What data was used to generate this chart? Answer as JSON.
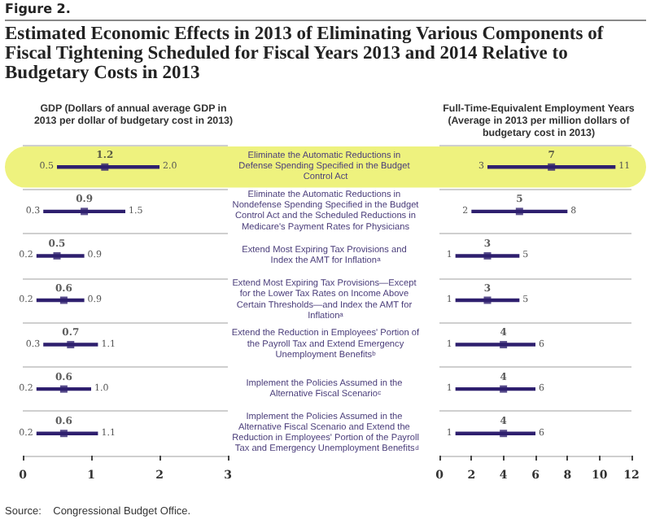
{
  "chart_data": [
    {
      "type": "scatter",
      "orientation": "horizontal",
      "title": "Estimated Economic Effects in 2013 of Eliminating Various Components of Fiscal Tightening Scheduled for Fiscal Years 2013 and 2014 Relative to Budgetary Costs in 2013",
      "subtitle": "GDP (Dollars of annual average GDP in\n2013 per dollar of budgetary cost in 2013)",
      "annotations": [
        "Figure 2.",
        "Source:    Congressional Budget Office.",
        {
          "text": "0.5",
          "x": 0.5,
          "y": "Eliminate the Automatic Reductions in Defense Spending Specified in the Budget Control Act"
        },
        {
          "text": "2.0",
          "x": 2.0,
          "y": "Eliminate the Automatic Reductions in Defense Spending Specified in the Budget Control Act"
        },
        {
          "text": "0.3",
          "x": 0.3,
          "y": "Eliminate the Automatic Reductions in Nondefense Spending Specified in the Budget Control Act and the Scheduled Reductions in Medicare's Payment Rates for Physicians"
        },
        {
          "text": "1.5",
          "x": 1.5,
          "y": "Eliminate the Automatic Reductions in Nondefense Spending Specified in the Budget Control Act and the Scheduled Reductions in Medicare's Payment Rates for Physicians"
        },
        {
          "text": "0.2",
          "x": 0.2,
          "y": "Extend Most Expiring Tax Provisions and Index the AMT for Inflation$^{a}$"
        },
        {
          "text": "0.9",
          "x": 0.9,
          "y": "Extend Most Expiring Tax Provisions and Index the AMT for Inflation$^{a}$"
        },
        {
          "text": "0.2",
          "x": 0.2,
          "y": "Extend Most Expiring Tax Provisions—Except for the Lower Tax Rates on Income Above Certain Thresholds—and Index the AMT for Inflation$^{a}$"
        },
        {
          "text": "0.9",
          "x": 0.9,
          "y": "Extend Most Expiring Tax Provisions—Except for the Lower Tax Rates on Income Above Certain Thresholds—and Index the AMT for Inflation$^{a}$"
        },
        {
          "text": "0.3",
          "x": 0.3,
          "y": "Extend the Reduction in Employees' Portion of the Payroll Tax and Extend Emergency Unemployment Benefits$^{b}$"
        },
        {
          "text": "1.1",
          "x": 1.1,
          "y": "Extend the Reduction in Employees' Portion of the Payroll Tax and Extend Emergency Unemployment Benefits$^{b}$"
        },
        {
          "text": "0.2",
          "x": 0.2,
          "y": "Implement the Policies Assumed in the Alternative Fiscal Scenario$^{c}$"
        },
        {
          "text": "1.0",
          "x": 1.0,
          "y": "Implement the Policies Assumed in the Alternative Fiscal Scenario$^{c}$"
        },
        {
          "text": "0.2",
          "x": 0.2,
          "y": "Implement the Policies Assumed in the Alternative Fiscal Scenario and Extend the Reduction in Employees' Portion of the Payroll Tax and Emergency Unemployment Benefits$^{d}$"
        },
        {
          "text": "1.1",
          "x": 1.1,
          "y": "Implement the Policies Assumed in the Alternative Fiscal Scenario and Extend the Reduction in Employees' Portion of the Payroll Tax and Emergency Unemployment Benefits$^{d}$"
        }
      ],
      "categories": [
        "Eliminate the Automatic Reductions in Defense Spending Specified in the Budget Control Act",
        "Eliminate the Automatic Reductions in Nondefense Spending Specified in the Budget Control Act and the Scheduled Reductions in Medicare's Payment Rates for Physicians",
        "Extend Most Expiring Tax Provisions and Index the AMT for Inflation$^{a}$",
        "Extend Most Expiring Tax Provisions—Except for the Lower Tax Rates on Income Above Certain Thresholds—and Index the AMT for Inflation$^{a}$",
        "Extend the Reduction in Employees' Portion of the Payroll Tax and Extend Emergency Unemployment Benefits$^{b}$",
        "Implement the Policies Assumed in the Alternative Fiscal Scenario$^{c}$",
        "Implement the Policies Assumed in the Alternative Fiscal Scenario and Extend the Reduction in Employees' Portion of the Payroll Tax and Emergency Unemployment Benefits$^{d}$"
      ],
      "series": [
        {
          "color": "#2e1f6e",
          "values": [
            1.2,
            0.9,
            0.5,
            0.6,
            0.7,
            0.6,
            0.6
          ],
          "errors": [
            [
              0.5,
              2.0
            ],
            [
              0.3,
              1.5
            ],
            [
              0.2,
              0.9
            ],
            [
              0.2,
              0.9
            ],
            [
              0.3,
              1.1
            ],
            [
              0.2,
              1.0
            ],
            [
              0.2,
              1.1
            ]
          ]
        }
      ],
      "data_labels": true,
      "marker": "square",
      "grid": "y",
      "bands": [
        {
          "axis": "y",
          "from": "Eliminate the Automatic Reductions in Defense Spending Specified in the Budget Control Act",
          "to": "Eliminate the Automatic Reductions in Defense Spending Specified in the Budget Control Act",
          "color": "#eef27e"
        }
      ],
      "xlim": [
        0,
        3
      ],
      "xticks": [
        0,
        1,
        2,
        3
      ]
    },
    {
      "type": "scatter",
      "orientation": "horizontal",
      "subtitle": "Full-Time-Equivalent Employment Years\n(Average in 2013 per million dollars of\nbudgetary cost in 2013)",
      "categories": [
        null,
        null,
        null,
        null,
        null,
        null,
        null
      ],
      "annotations": [
        {
          "text": "3",
          "x": 3
        },
        {
          "text": "11",
          "x": 11
        },
        {
          "text": "2",
          "x": 2
        },
        {
          "text": "8",
          "x": 8
        },
        {
          "text": "1",
          "x": 1
        },
        {
          "text": "5",
          "x": 5
        },
        {
          "text": "1",
          "x": 1
        },
        {
          "text": "5",
          "x": 5
        },
        {
          "text": "1",
          "x": 1
        },
        {
          "text": "6",
          "x": 6
        },
        {
          "text": "1",
          "x": 1
        },
        {
          "text": "6",
          "x": 6
        },
        {
          "text": "1",
          "x": 1
        },
        {
          "text": "6",
          "x": 6
        }
      ],
      "series": [
        {
          "color": "#2e1f6e",
          "values": [
            7,
            5,
            3,
            3,
            4,
            4,
            4
          ],
          "errors": [
            [
              3,
              11
            ],
            [
              2,
              8
            ],
            [
              1,
              5
            ],
            [
              1,
              5
            ],
            [
              1,
              6
            ],
            [
              1,
              6
            ],
            [
              1,
              6
            ]
          ]
        }
      ],
      "data_labels": true,
      "marker": "square",
      "grid": "y",
      "xlim": [
        0,
        12
      ],
      "xticks": [
        0,
        2,
        4,
        6,
        8,
        10,
        12
      ]
    }
  ]
}
